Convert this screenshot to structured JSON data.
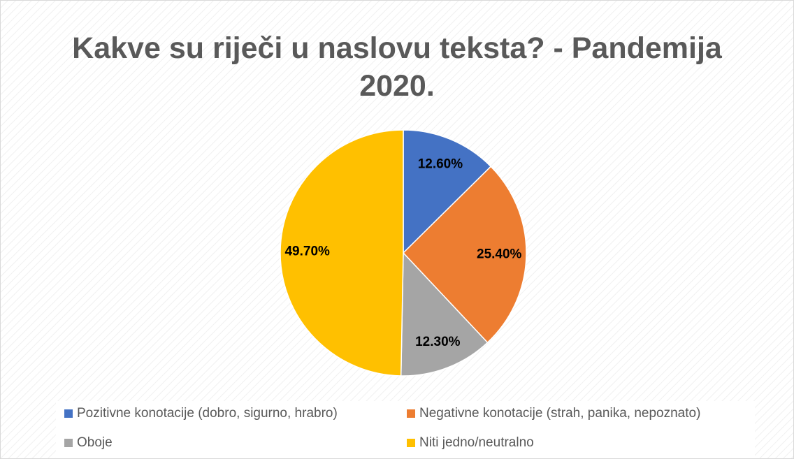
{
  "chart_data": {
    "type": "pie",
    "title": "Kakve su riječi u naslovu teksta? - Pandemija 2020.",
    "categories": [
      "Pozitivne konotacije (dobro, sigurno, hrabro)",
      "Negativne konotacije (strah, panika, nepoznato)",
      "Oboje",
      "Niti jedno/neutralno"
    ],
    "values": [
      12.6,
      25.4,
      12.3,
      49.7
    ],
    "value_labels": [
      "12.60%",
      "25.40%",
      "12.30%",
      "49.70%"
    ],
    "colors": [
      "#4472c4",
      "#ed7d31",
      "#a5a5a5",
      "#ffc000"
    ],
    "legend": "bottom"
  }
}
